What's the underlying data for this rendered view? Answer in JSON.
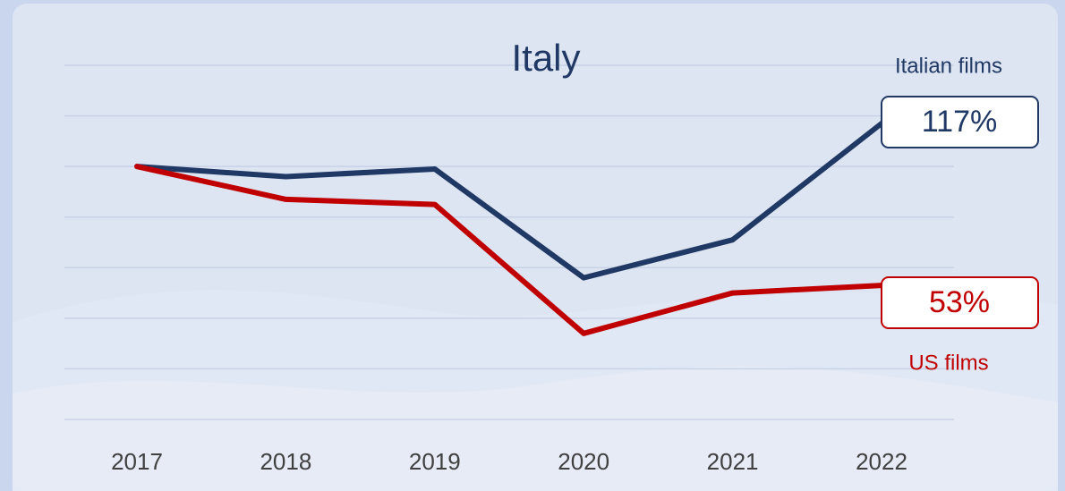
{
  "chart_data": {
    "type": "line",
    "title": "Italy",
    "categories": [
      "2017",
      "2018",
      "2019",
      "2020",
      "2021",
      "2022"
    ],
    "series": [
      {
        "name": "Italian films",
        "color": "#203864",
        "values": [
          100,
          96,
          99,
          56,
          71,
          117
        ],
        "value_labels": [
          null,
          null,
          null,
          null,
          null,
          "117%"
        ]
      },
      {
        "name": "US films",
        "color": "#c00000",
        "values": [
          100,
          87,
          85,
          34,
          50,
          53
        ],
        "value_labels": [
          null,
          null,
          null,
          null,
          null,
          "53%"
        ]
      }
    ],
    "ylim": [
      0,
      140
    ],
    "yticks": [
      0,
      20,
      40,
      60,
      80,
      100,
      120,
      140
    ],
    "grid": true
  }
}
